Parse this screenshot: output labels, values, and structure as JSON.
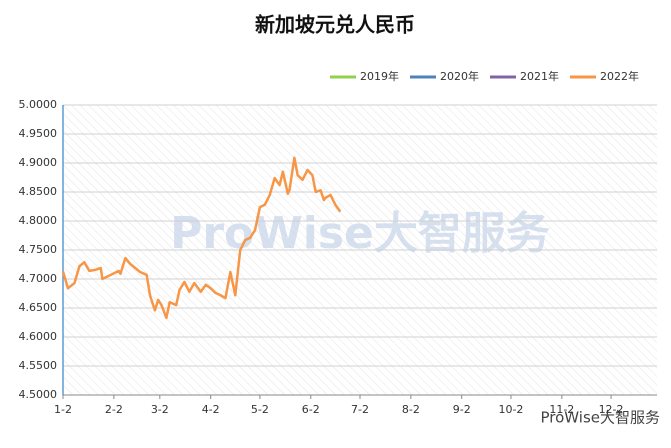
{
  "chart_data": {
    "type": "line",
    "title": "新加坡元兑人民币",
    "watermark": "ProWise大智服务",
    "footer_brand": "ProWise大智服务",
    "xlim": [
      0,
      362
    ],
    "xticks": [
      {
        "value": 0,
        "label": "1-2"
      },
      {
        "value": 31,
        "label": "2-2"
      },
      {
        "value": 59,
        "label": "3-2"
      },
      {
        "value": 90,
        "label": "4-2"
      },
      {
        "value": 120,
        "label": "5-2"
      },
      {
        "value": 151,
        "label": "6-2"
      },
      {
        "value": 181,
        "label": "7-2"
      },
      {
        "value": 212,
        "label": "8-2"
      },
      {
        "value": 243,
        "label": "9-2"
      },
      {
        "value": 273,
        "label": "10-2"
      },
      {
        "value": 304,
        "label": "11-2"
      },
      {
        "value": 334,
        "label": "12-2"
      }
    ],
    "ylim": [
      4.5,
      5.0
    ],
    "yticks": [
      {
        "value": 4.5,
        "label": "4.5000"
      },
      {
        "value": 4.55,
        "label": "4.5500"
      },
      {
        "value": 4.6,
        "label": "4.6000"
      },
      {
        "value": 4.65,
        "label": "4.6500"
      },
      {
        "value": 4.7,
        "label": "4.7000"
      },
      {
        "value": 4.75,
        "label": "4.7500"
      },
      {
        "value": 4.8,
        "label": "4.8000"
      },
      {
        "value": 4.85,
        "label": "4.8500"
      },
      {
        "value": 4.9,
        "label": "4.9000"
      },
      {
        "value": 4.95,
        "label": "4.9500"
      },
      {
        "value": 5.0,
        "label": "5.0000"
      }
    ],
    "grid": true,
    "legend": "top-right",
    "series": [
      {
        "name": "2019年",
        "color": "#92d050",
        "x": [],
        "values": []
      },
      {
        "name": "2020年",
        "color": "#4f81bd",
        "x": [],
        "values": []
      },
      {
        "name": "2021年",
        "color": "#8064a2",
        "x": [],
        "values": []
      },
      {
        "name": "2022年",
        "color": "#f79646",
        "x": [
          0,
          3,
          7,
          10,
          13,
          16,
          20,
          23,
          24,
          29,
          34,
          35,
          38,
          41,
          44,
          47,
          51,
          53,
          56,
          58,
          60,
          63,
          65,
          69,
          71,
          74,
          77,
          80,
          84,
          87,
          90,
          93,
          96,
          99,
          102,
          105,
          108,
          111,
          114,
          117,
          120,
          123,
          126,
          129,
          132,
          134,
          137,
          138,
          141,
          143,
          146,
          149,
          152,
          154,
          157,
          159,
          160,
          163,
          166,
          169
        ],
        "values": [
          4.713,
          4.684,
          4.693,
          4.722,
          4.729,
          4.714,
          4.716,
          4.719,
          4.7,
          4.707,
          4.714,
          4.709,
          4.736,
          4.726,
          4.719,
          4.712,
          4.707,
          4.672,
          4.646,
          4.664,
          4.655,
          4.633,
          4.66,
          4.655,
          4.681,
          4.695,
          4.678,
          4.693,
          4.678,
          4.69,
          4.684,
          4.676,
          4.672,
          4.667,
          4.712,
          4.672,
          4.75,
          4.767,
          4.771,
          4.784,
          4.824,
          4.828,
          4.845,
          4.874,
          4.862,
          4.885,
          4.847,
          4.853,
          4.909,
          4.879,
          4.871,
          4.888,
          4.879,
          4.85,
          4.853,
          4.836,
          4.84,
          4.845,
          4.828,
          4.816
        ]
      }
    ]
  }
}
